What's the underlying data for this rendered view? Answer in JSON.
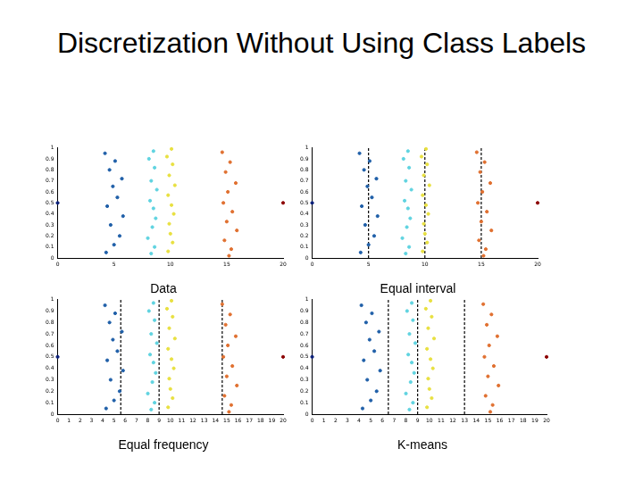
{
  "title": "Discretization Without Using Class Labels",
  "chart_data": [
    {
      "type": "scatter",
      "title": "Data",
      "xlim": [
        0,
        20
      ],
      "xticks": [
        0,
        5,
        10,
        15,
        20
      ],
      "ylim": [
        0,
        1
      ],
      "yticks": [
        0,
        0.1,
        0.2,
        0.3,
        0.4,
        0.5,
        0.6,
        0.7,
        0.8,
        0.9,
        1
      ],
      "grid": false,
      "series": [
        {
          "color": "#1f5fa8",
          "x": [
            4.2,
            5.1,
            4.6,
            5.7,
            4.9,
            5.3,
            4.4,
            5.8,
            4.7,
            5.5,
            5.0,
            4.3
          ],
          "values": [
            0.95,
            0.88,
            0.8,
            0.72,
            0.65,
            0.55,
            0.47,
            0.38,
            0.3,
            0.2,
            0.12,
            0.05
          ]
        },
        {
          "color": "#5fd3e0",
          "x": [
            8.1,
            8.6,
            8.3,
            8.8,
            8.2,
            8.5,
            8.7,
            8.4,
            8.0,
            8.6,
            8.3,
            8.5
          ],
          "values": [
            0.9,
            0.82,
            0.7,
            0.62,
            0.52,
            0.45,
            0.36,
            0.28,
            0.18,
            0.1,
            0.04,
            0.97
          ]
        },
        {
          "color": "#e8e040",
          "x": [
            9.7,
            10.2,
            9.9,
            10.4,
            9.8,
            10.1,
            10.3,
            9.9,
            10.0,
            10.2,
            9.8,
            10.1
          ],
          "values": [
            0.92,
            0.85,
            0.75,
            0.66,
            0.57,
            0.48,
            0.4,
            0.31,
            0.22,
            0.14,
            0.06,
            0.99
          ]
        },
        {
          "color": "#e07030",
          "x": [
            14.6,
            15.3,
            14.9,
            15.8,
            15.1,
            14.7,
            15.5,
            15.0,
            15.9,
            14.8,
            15.4,
            15.2
          ],
          "values": [
            0.96,
            0.87,
            0.78,
            0.68,
            0.6,
            0.5,
            0.42,
            0.33,
            0.25,
            0.16,
            0.08,
            0.02
          ]
        },
        {
          "color": "#0a1f7a",
          "x": [
            0
          ],
          "values": [
            0.5
          ]
        },
        {
          "color": "#8b0000",
          "x": [
            20
          ],
          "values": [
            0.5
          ]
        }
      ]
    },
    {
      "type": "scatter",
      "title": "Equal interval",
      "xlim": [
        0,
        20
      ],
      "xticks": [
        0,
        5,
        10,
        15,
        20
      ],
      "ylim": [
        0,
        1
      ],
      "yticks": [
        0,
        0.1,
        0.2,
        0.3,
        0.4,
        0.5,
        0.6,
        0.7,
        0.8,
        0.9,
        1
      ],
      "grid": false,
      "cut_points": [
        5,
        10,
        15
      ],
      "line_style": "dashed",
      "series": [
        {
          "color": "#1f5fa8",
          "x": [
            4.2,
            5.1,
            4.6,
            5.7,
            4.9,
            5.3,
            4.4,
            5.8,
            4.7,
            5.5,
            5.0,
            4.3
          ],
          "values": [
            0.95,
            0.88,
            0.8,
            0.72,
            0.65,
            0.55,
            0.47,
            0.38,
            0.3,
            0.2,
            0.12,
            0.05
          ]
        },
        {
          "color": "#5fd3e0",
          "x": [
            8.1,
            8.6,
            8.3,
            8.8,
            8.2,
            8.5,
            8.7,
            8.4,
            8.0,
            8.6,
            8.3,
            8.5
          ],
          "values": [
            0.9,
            0.82,
            0.7,
            0.62,
            0.52,
            0.45,
            0.36,
            0.28,
            0.18,
            0.1,
            0.04,
            0.97
          ]
        },
        {
          "color": "#e8e040",
          "x": [
            9.7,
            10.2,
            9.9,
            10.4,
            9.8,
            10.1,
            10.3,
            9.9,
            10.0,
            10.2,
            9.8,
            10.1
          ],
          "values": [
            0.92,
            0.85,
            0.75,
            0.66,
            0.57,
            0.48,
            0.4,
            0.31,
            0.22,
            0.14,
            0.06,
            0.99
          ]
        },
        {
          "color": "#e07030",
          "x": [
            14.6,
            15.3,
            14.9,
            15.8,
            15.1,
            14.7,
            15.5,
            15.0,
            15.9,
            14.8,
            15.4,
            15.2
          ],
          "values": [
            0.96,
            0.87,
            0.78,
            0.68,
            0.6,
            0.5,
            0.42,
            0.33,
            0.25,
            0.16,
            0.08,
            0.02
          ]
        },
        {
          "color": "#0a1f7a",
          "x": [
            0
          ],
          "values": [
            0.5
          ]
        },
        {
          "color": "#8b0000",
          "x": [
            20
          ],
          "values": [
            0.5
          ]
        }
      ]
    },
    {
      "type": "scatter",
      "title": "Equal frequency",
      "xlim": [
        0,
        20
      ],
      "xticks": [
        0,
        1,
        2,
        3,
        4,
        5,
        6,
        7,
        8,
        9,
        10,
        11,
        12,
        13,
        14,
        15,
        16,
        17,
        18,
        19,
        20
      ],
      "ylim": [
        0,
        1
      ],
      "yticks": [
        0,
        0.1,
        0.2,
        0.3,
        0.4,
        0.5,
        0.6,
        0.7,
        0.8,
        0.9,
        1
      ],
      "grid": false,
      "cut_points": [
        5.6,
        9,
        14.6
      ],
      "line_style": "dashed",
      "series": [
        {
          "color": "#1f5fa8",
          "x": [
            4.2,
            5.1,
            4.6,
            5.7,
            4.9,
            5.3,
            4.4,
            5.8,
            4.7,
            5.5,
            5.0,
            4.3
          ],
          "values": [
            0.95,
            0.88,
            0.8,
            0.72,
            0.65,
            0.55,
            0.47,
            0.38,
            0.3,
            0.2,
            0.12,
            0.05
          ]
        },
        {
          "color": "#5fd3e0",
          "x": [
            8.1,
            8.6,
            8.3,
            8.8,
            8.2,
            8.5,
            8.7,
            8.4,
            8.0,
            8.6,
            8.3,
            8.5
          ],
          "values": [
            0.9,
            0.82,
            0.7,
            0.62,
            0.52,
            0.45,
            0.36,
            0.28,
            0.18,
            0.1,
            0.04,
            0.97
          ]
        },
        {
          "color": "#e8e040",
          "x": [
            9.7,
            10.2,
            9.9,
            10.4,
            9.8,
            10.1,
            10.3,
            9.9,
            10.0,
            10.2,
            9.8,
            10.1
          ],
          "values": [
            0.92,
            0.85,
            0.75,
            0.66,
            0.57,
            0.48,
            0.4,
            0.31,
            0.22,
            0.14,
            0.06,
            0.99
          ]
        },
        {
          "color": "#e07030",
          "x": [
            14.6,
            15.3,
            14.9,
            15.8,
            15.1,
            14.7,
            15.5,
            15.0,
            15.9,
            14.8,
            15.4,
            15.2
          ],
          "values": [
            0.96,
            0.87,
            0.78,
            0.68,
            0.6,
            0.5,
            0.42,
            0.33,
            0.25,
            0.16,
            0.08,
            0.02
          ]
        },
        {
          "color": "#0a1f7a",
          "x": [
            0
          ],
          "values": [
            0.5
          ]
        },
        {
          "color": "#8b0000",
          "x": [
            20
          ],
          "values": [
            0.5
          ]
        }
      ]
    },
    {
      "type": "scatter",
      "title": "K-means",
      "xlim": [
        0,
        20
      ],
      "xticks": [
        0,
        1,
        2,
        3,
        4,
        5,
        6,
        7,
        8,
        9,
        10,
        11,
        12,
        13,
        14,
        15,
        16,
        17,
        18,
        19,
        20
      ],
      "ylim": [
        0,
        1
      ],
      "yticks": [
        0,
        0.1,
        0.2,
        0.3,
        0.4,
        0.5,
        0.6,
        0.7,
        0.8,
        0.9,
        1
      ],
      "grid": false,
      "cut_points": [
        6.5,
        9,
        13
      ],
      "line_style": "dashed",
      "series": [
        {
          "color": "#1f5fa8",
          "x": [
            4.2,
            5.1,
            4.6,
            5.7,
            4.9,
            5.3,
            4.4,
            5.8,
            4.7,
            5.5,
            5.0,
            4.3
          ],
          "values": [
            0.95,
            0.88,
            0.8,
            0.72,
            0.65,
            0.55,
            0.47,
            0.38,
            0.3,
            0.2,
            0.12,
            0.05
          ]
        },
        {
          "color": "#5fd3e0",
          "x": [
            8.1,
            8.6,
            8.3,
            8.8,
            8.2,
            8.5,
            8.7,
            8.4,
            8.0,
            8.6,
            8.3,
            8.5
          ],
          "values": [
            0.9,
            0.82,
            0.7,
            0.62,
            0.52,
            0.45,
            0.36,
            0.28,
            0.18,
            0.1,
            0.04,
            0.97
          ]
        },
        {
          "color": "#e8e040",
          "x": [
            9.7,
            10.2,
            9.9,
            10.4,
            9.8,
            10.1,
            10.3,
            9.9,
            10.0,
            10.2,
            9.8,
            10.1
          ],
          "values": [
            0.92,
            0.85,
            0.75,
            0.66,
            0.57,
            0.48,
            0.4,
            0.31,
            0.22,
            0.14,
            0.06,
            0.99
          ]
        },
        {
          "color": "#e07030",
          "x": [
            14.6,
            15.3,
            14.9,
            15.8,
            15.1,
            14.7,
            15.5,
            15.0,
            15.9,
            14.8,
            15.4,
            15.2
          ],
          "values": [
            0.96,
            0.87,
            0.78,
            0.68,
            0.6,
            0.5,
            0.42,
            0.33,
            0.25,
            0.16,
            0.08,
            0.02
          ]
        },
        {
          "color": "#0a1f7a",
          "x": [
            0
          ],
          "values": [
            0.5
          ]
        },
        {
          "color": "#8b0000",
          "x": [
            20
          ],
          "values": [
            0.5
          ]
        }
      ]
    }
  ]
}
